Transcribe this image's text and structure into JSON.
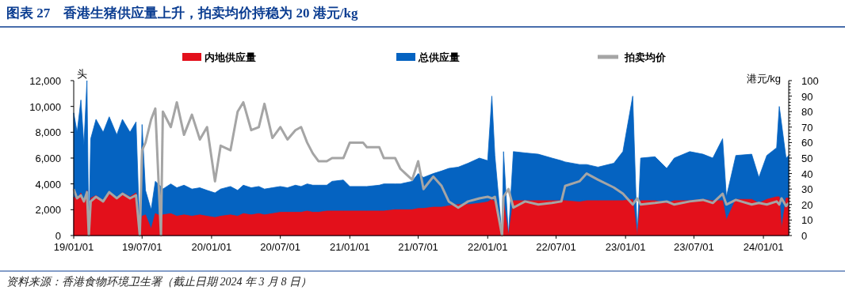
{
  "chart_data": {
    "type": "area",
    "title": "图表 27　香港生猪供应量上升，拍卖均价持稳为 20 港元/kg",
    "ylabel": "头",
    "y2label": "港元/kg",
    "annotations": [
      "资料来源：香港食物环境卫生署（截止日期 2024 年 3 月 8 日）"
    ],
    "legend": "top",
    "grid": false,
    "x": [
      "2019-01-01",
      "2019-01-10",
      "2019-01-20",
      "2019-01-28",
      "2019-02-05",
      "2019-02-10",
      "2019-02-15",
      "2019-03-01",
      "2019-03-20",
      "2019-04-05",
      "2019-04-25",
      "2019-05-10",
      "2019-05-30",
      "2019-06-15",
      "2019-06-25",
      "2019-07-01",
      "2019-07-10",
      "2019-07-25",
      "2019-08-05",
      "2019-08-20",
      "2019-08-25",
      "2019-09-15",
      "2019-10-01",
      "2019-10-20",
      "2019-11-10",
      "2019-12-01",
      "2019-12-20",
      "2020-01-10",
      "2020-01-25",
      "2020-02-20",
      "2020-03-10",
      "2020-03-25",
      "2020-04-15",
      "2020-05-05",
      "2020-05-20",
      "2020-06-10",
      "2020-07-01",
      "2020-07-20",
      "2020-08-10",
      "2020-08-25",
      "2020-09-10",
      "2020-09-25",
      "2020-10-10",
      "2020-11-01",
      "2020-11-15",
      "2020-12-15",
      "2021-01-01",
      "2021-02-05",
      "2021-02-15",
      "2021-03-20",
      "2021-04-01",
      "2021-05-01",
      "2021-05-15",
      "2021-06-15",
      "2021-07-01",
      "2021-07-15",
      "2021-08-10",
      "2021-09-01",
      "2021-09-20",
      "2021-10-15",
      "2021-11-10",
      "2021-12-10",
      "2022-01-01",
      "2022-01-12",
      "2022-01-20",
      "2022-02-08",
      "2022-02-12",
      "2022-02-25",
      "2022-03-10",
      "2022-04-10",
      "2022-05-15",
      "2022-06-20",
      "2022-07-15",
      "2022-07-25",
      "2022-09-01",
      "2022-09-20",
      "2022-10-20",
      "2022-12-01",
      "2022-12-25",
      "2023-01-20",
      "2023-02-01",
      "2023-02-10",
      "2023-03-20",
      "2023-04-20",
      "2023-05-10",
      "2023-06-20",
      "2023-07-25",
      "2023-08-20",
      "2023-09-15",
      "2023-09-25",
      "2023-10-20",
      "2023-12-01",
      "2023-12-20",
      "2024-01-10",
      "2024-02-05",
      "2024-02-12",
      "2024-02-18",
      "2024-03-01",
      "2024-03-08"
    ],
    "series": [
      {
        "name": "总供应量",
        "color": "#0563c1",
        "values": [
          9500,
          8000,
          10500,
          7000,
          12000,
          0,
          7500,
          9000,
          8000,
          9200,
          7800,
          9000,
          8000,
          8800,
          0,
          8600,
          3500,
          2000,
          4200,
          3800,
          3600,
          4000,
          3700,
          3900,
          3600,
          3700,
          3500,
          3300,
          3600,
          3800,
          3500,
          3900,
          3700,
          3800,
          3600,
          3700,
          3800,
          3700,
          3900,
          3800,
          4000,
          3900,
          3900,
          3900,
          4200,
          4300,
          3800,
          3800,
          3800,
          3900,
          4000,
          4000,
          4000,
          4200,
          4800,
          4500,
          4800,
          5000,
          5200,
          5300,
          5600,
          6000,
          5800,
          10800,
          6200,
          0,
          6500,
          0,
          6500,
          6400,
          6300,
          6000,
          5800,
          5700,
          5500,
          5500,
          5300,
          5600,
          6500,
          10800,
          0,
          6000,
          6100,
          5200,
          6000,
          6500,
          6300,
          6000,
          7500,
          3000,
          6200,
          6300,
          4500,
          6200,
          6800,
          10000,
          null,
          6000,
          6200
        ]
      },
      {
        "name": "内地供应量",
        "color": "#e3101b",
        "values": [
          3000,
          2800,
          3300,
          2600,
          3500,
          0,
          2900,
          3100,
          2700,
          3200,
          2900,
          3300,
          3000,
          3300,
          0,
          1500,
          1600,
          500,
          1700,
          1500,
          1600,
          1700,
          1500,
          1600,
          1500,
          1600,
          1500,
          1400,
          1500,
          1600,
          1500,
          1700,
          1600,
          1700,
          1600,
          1700,
          1800,
          1800,
          1800,
          1800,
          1900,
          1800,
          1800,
          1900,
          1900,
          1900,
          1900,
          1900,
          1900,
          1900,
          1900,
          2000,
          2000,
          2000,
          2100,
          2100,
          2200,
          2200,
          2300,
          2400,
          2400,
          2500,
          2600,
          2800,
          2600,
          0,
          2700,
          0,
          2700,
          2700,
          2700,
          2700,
          2700,
          2700,
          2600,
          2700,
          2700,
          2700,
          2700,
          2800,
          0,
          2700,
          2700,
          2500,
          2700,
          2700,
          2800,
          2700,
          2700,
          1200,
          2800,
          2800,
          2500,
          2800,
          3000,
          3000,
          500,
          2900,
          2900
        ]
      },
      {
        "name": "拍卖均价",
        "color": "#a5a5a5",
        "type": "line",
        "axis": "y2",
        "values": [
          30,
          24,
          26,
          22,
          28,
          0,
          22,
          25,
          22,
          28,
          24,
          27,
          24,
          26,
          0,
          55,
          60,
          75,
          82,
          0,
          80,
          70,
          86,
          65,
          78,
          62,
          70,
          35,
          58,
          55,
          80,
          86,
          68,
          70,
          85,
          63,
          70,
          62,
          68,
          70,
          60,
          53,
          48,
          48,
          50,
          50,
          60,
          60,
          57,
          57,
          50,
          50,
          43,
          36,
          48,
          30,
          38,
          32,
          22,
          18,
          22,
          24,
          25,
          24,
          25,
          0,
          25,
          30,
          18,
          22,
          20,
          21,
          22,
          32,
          35,
          40,
          36,
          31,
          27,
          20,
          24,
          20,
          21,
          22,
          20,
          22,
          23,
          21,
          27,
          20,
          23,
          20,
          21,
          20,
          22,
          20,
          24,
          19,
          21
        ]
      }
    ],
    "xlim": [
      "2019-01-01",
      "2024-03-08"
    ],
    "xticks": [
      {
        "value": "2019-01-01",
        "label": "19/01/01"
      },
      {
        "value": "2019-07-01",
        "label": "19/07/01"
      },
      {
        "value": "2020-01-01",
        "label": "20/01/01"
      },
      {
        "value": "2020-07-01",
        "label": "20/07/01"
      },
      {
        "value": "2021-01-01",
        "label": "21/01/01"
      },
      {
        "value": "2021-07-01",
        "label": "21/07/01"
      },
      {
        "value": "2022-01-01",
        "label": "22/01/01"
      },
      {
        "value": "2022-07-01",
        "label": "22/07/01"
      },
      {
        "value": "2023-01-01",
        "label": "23/01/01"
      },
      {
        "value": "2023-07-01",
        "label": "23/07/01"
      },
      {
        "value": "2024-01-01",
        "label": "24/01/01"
      }
    ],
    "ylim": [
      0,
      12000
    ],
    "yticks": [
      0,
      {
        "value": 2000,
        "label": "2,000"
      },
      {
        "value": 4000,
        "label": "4,000"
      },
      {
        "value": 6000,
        "label": "6,000"
      },
      {
        "value": 8000,
        "label": "8,000"
      },
      {
        "value": 10000,
        "label": "10,000"
      },
      {
        "value": 12000,
        "label": "12,000"
      }
    ],
    "y2lim": [
      0,
      100
    ],
    "y2ticks": [
      0,
      10,
      20,
      30,
      40,
      50,
      60,
      70,
      80,
      90,
      100
    ]
  }
}
